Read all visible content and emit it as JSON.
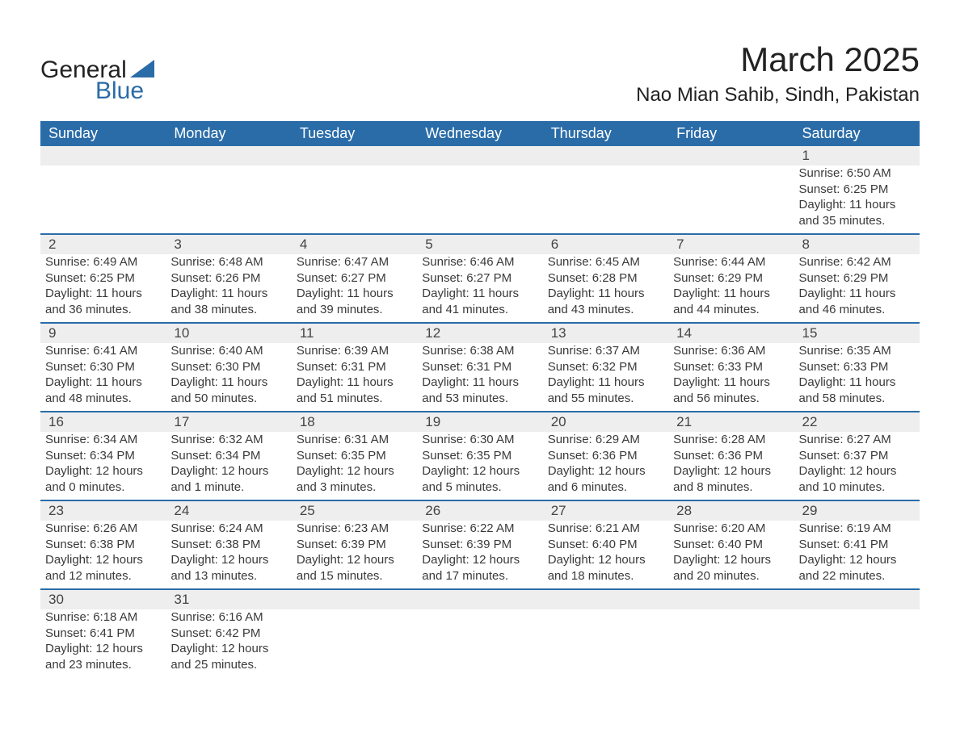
{
  "logo": {
    "line1": "General",
    "line2": "Blue",
    "accent_color": "#2a6ca8"
  },
  "title": "March 2025",
  "location": "Nao Mian Sahib, Sindh, Pakistan",
  "colors": {
    "header_bg": "#2a6ca8",
    "header_text": "#ffffff",
    "row_divider": "#2a6ca8",
    "daynum_bg": "#eeeeee",
    "body_text": "#3a3a3a",
    "page_bg": "#ffffff"
  },
  "day_names": [
    "Sunday",
    "Monday",
    "Tuesday",
    "Wednesday",
    "Thursday",
    "Friday",
    "Saturday"
  ],
  "weeks": [
    [
      null,
      null,
      null,
      null,
      null,
      null,
      {
        "n": "1",
        "sr": "Sunrise: 6:50 AM",
        "ss": "Sunset: 6:25 PM",
        "d1": "Daylight: 11 hours",
        "d2": "and 35 minutes."
      }
    ],
    [
      {
        "n": "2",
        "sr": "Sunrise: 6:49 AM",
        "ss": "Sunset: 6:25 PM",
        "d1": "Daylight: 11 hours",
        "d2": "and 36 minutes."
      },
      {
        "n": "3",
        "sr": "Sunrise: 6:48 AM",
        "ss": "Sunset: 6:26 PM",
        "d1": "Daylight: 11 hours",
        "d2": "and 38 minutes."
      },
      {
        "n": "4",
        "sr": "Sunrise: 6:47 AM",
        "ss": "Sunset: 6:27 PM",
        "d1": "Daylight: 11 hours",
        "d2": "and 39 minutes."
      },
      {
        "n": "5",
        "sr": "Sunrise: 6:46 AM",
        "ss": "Sunset: 6:27 PM",
        "d1": "Daylight: 11 hours",
        "d2": "and 41 minutes."
      },
      {
        "n": "6",
        "sr": "Sunrise: 6:45 AM",
        "ss": "Sunset: 6:28 PM",
        "d1": "Daylight: 11 hours",
        "d2": "and 43 minutes."
      },
      {
        "n": "7",
        "sr": "Sunrise: 6:44 AM",
        "ss": "Sunset: 6:29 PM",
        "d1": "Daylight: 11 hours",
        "d2": "and 44 minutes."
      },
      {
        "n": "8",
        "sr": "Sunrise: 6:42 AM",
        "ss": "Sunset: 6:29 PM",
        "d1": "Daylight: 11 hours",
        "d2": "and 46 minutes."
      }
    ],
    [
      {
        "n": "9",
        "sr": "Sunrise: 6:41 AM",
        "ss": "Sunset: 6:30 PM",
        "d1": "Daylight: 11 hours",
        "d2": "and 48 minutes."
      },
      {
        "n": "10",
        "sr": "Sunrise: 6:40 AM",
        "ss": "Sunset: 6:30 PM",
        "d1": "Daylight: 11 hours",
        "d2": "and 50 minutes."
      },
      {
        "n": "11",
        "sr": "Sunrise: 6:39 AM",
        "ss": "Sunset: 6:31 PM",
        "d1": "Daylight: 11 hours",
        "d2": "and 51 minutes."
      },
      {
        "n": "12",
        "sr": "Sunrise: 6:38 AM",
        "ss": "Sunset: 6:31 PM",
        "d1": "Daylight: 11 hours",
        "d2": "and 53 minutes."
      },
      {
        "n": "13",
        "sr": "Sunrise: 6:37 AM",
        "ss": "Sunset: 6:32 PM",
        "d1": "Daylight: 11 hours",
        "d2": "and 55 minutes."
      },
      {
        "n": "14",
        "sr": "Sunrise: 6:36 AM",
        "ss": "Sunset: 6:33 PM",
        "d1": "Daylight: 11 hours",
        "d2": "and 56 minutes."
      },
      {
        "n": "15",
        "sr": "Sunrise: 6:35 AM",
        "ss": "Sunset: 6:33 PM",
        "d1": "Daylight: 11 hours",
        "d2": "and 58 minutes."
      }
    ],
    [
      {
        "n": "16",
        "sr": "Sunrise: 6:34 AM",
        "ss": "Sunset: 6:34 PM",
        "d1": "Daylight: 12 hours",
        "d2": "and 0 minutes."
      },
      {
        "n": "17",
        "sr": "Sunrise: 6:32 AM",
        "ss": "Sunset: 6:34 PM",
        "d1": "Daylight: 12 hours",
        "d2": "and 1 minute."
      },
      {
        "n": "18",
        "sr": "Sunrise: 6:31 AM",
        "ss": "Sunset: 6:35 PM",
        "d1": "Daylight: 12 hours",
        "d2": "and 3 minutes."
      },
      {
        "n": "19",
        "sr": "Sunrise: 6:30 AM",
        "ss": "Sunset: 6:35 PM",
        "d1": "Daylight: 12 hours",
        "d2": "and 5 minutes."
      },
      {
        "n": "20",
        "sr": "Sunrise: 6:29 AM",
        "ss": "Sunset: 6:36 PM",
        "d1": "Daylight: 12 hours",
        "d2": "and 6 minutes."
      },
      {
        "n": "21",
        "sr": "Sunrise: 6:28 AM",
        "ss": "Sunset: 6:36 PM",
        "d1": "Daylight: 12 hours",
        "d2": "and 8 minutes."
      },
      {
        "n": "22",
        "sr": "Sunrise: 6:27 AM",
        "ss": "Sunset: 6:37 PM",
        "d1": "Daylight: 12 hours",
        "d2": "and 10 minutes."
      }
    ],
    [
      {
        "n": "23",
        "sr": "Sunrise: 6:26 AM",
        "ss": "Sunset: 6:38 PM",
        "d1": "Daylight: 12 hours",
        "d2": "and 12 minutes."
      },
      {
        "n": "24",
        "sr": "Sunrise: 6:24 AM",
        "ss": "Sunset: 6:38 PM",
        "d1": "Daylight: 12 hours",
        "d2": "and 13 minutes."
      },
      {
        "n": "25",
        "sr": "Sunrise: 6:23 AM",
        "ss": "Sunset: 6:39 PM",
        "d1": "Daylight: 12 hours",
        "d2": "and 15 minutes."
      },
      {
        "n": "26",
        "sr": "Sunrise: 6:22 AM",
        "ss": "Sunset: 6:39 PM",
        "d1": "Daylight: 12 hours",
        "d2": "and 17 minutes."
      },
      {
        "n": "27",
        "sr": "Sunrise: 6:21 AM",
        "ss": "Sunset: 6:40 PM",
        "d1": "Daylight: 12 hours",
        "d2": "and 18 minutes."
      },
      {
        "n": "28",
        "sr": "Sunrise: 6:20 AM",
        "ss": "Sunset: 6:40 PM",
        "d1": "Daylight: 12 hours",
        "d2": "and 20 minutes."
      },
      {
        "n": "29",
        "sr": "Sunrise: 6:19 AM",
        "ss": "Sunset: 6:41 PM",
        "d1": "Daylight: 12 hours",
        "d2": "and 22 minutes."
      }
    ],
    [
      {
        "n": "30",
        "sr": "Sunrise: 6:18 AM",
        "ss": "Sunset: 6:41 PM",
        "d1": "Daylight: 12 hours",
        "d2": "and 23 minutes."
      },
      {
        "n": "31",
        "sr": "Sunrise: 6:16 AM",
        "ss": "Sunset: 6:42 PM",
        "d1": "Daylight: 12 hours",
        "d2": "and 25 minutes."
      },
      null,
      null,
      null,
      null,
      null
    ]
  ]
}
